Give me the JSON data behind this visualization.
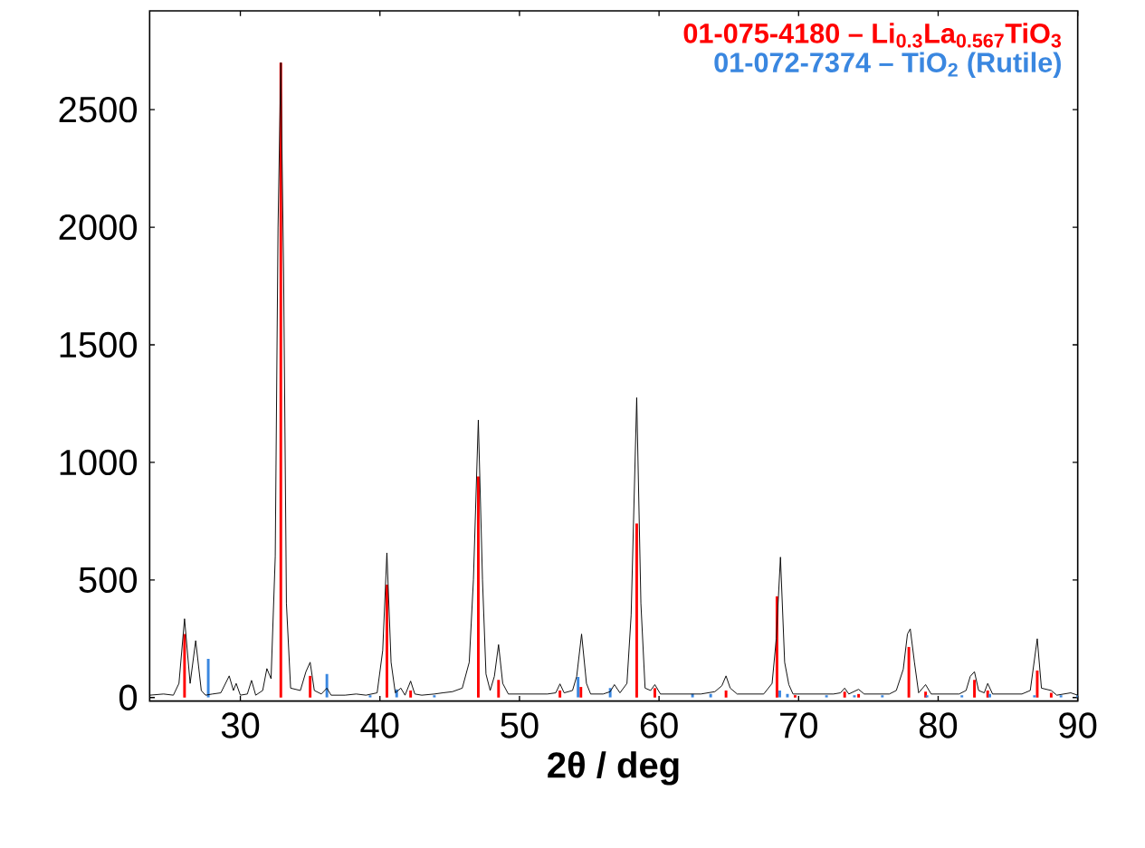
{
  "chart_data": {
    "type": "line",
    "xlabel": "2θ / deg",
    "xlim": [
      23.5,
      90
    ],
    "ylim": [
      -15,
      2920
    ],
    "xticks": [
      30,
      40,
      50,
      60,
      70,
      80,
      90
    ],
    "yticks": [
      0,
      500,
      1000,
      1500,
      2000,
      2500
    ],
    "grid": false,
    "legend": "top right",
    "series": [
      {
        "color": "#000000",
        "x": [
          23.5,
          24.5,
          25.2,
          25.6,
          26.0,
          26.4,
          26.8,
          27.2,
          27.5,
          28.0,
          28.6,
          29.2,
          29.5,
          29.7,
          30.0,
          30.5,
          30.8,
          31.1,
          31.6,
          31.9,
          32.2,
          32.5,
          32.7,
          32.9,
          33.1,
          33.3,
          33.6,
          34.3,
          34.7,
          35.0,
          35.3,
          35.8,
          36.2,
          36.5,
          37.5,
          38.3,
          39.0,
          39.8,
          40.2,
          40.5,
          40.8,
          41.1,
          41.5,
          41.8,
          42.2,
          42.5,
          43.0,
          43.9,
          44.5,
          45.2,
          45.9,
          46.4,
          46.7,
          47.05,
          47.35,
          47.6,
          47.9,
          48.2,
          48.5,
          48.8,
          49.2,
          50.0,
          51.0,
          52.0,
          52.6,
          52.9,
          53.2,
          53.8,
          54.1,
          54.45,
          54.8,
          55.1,
          56.0,
          56.5,
          56.8,
          57.2,
          57.7,
          58.0,
          58.4,
          58.7,
          59.0,
          59.4,
          59.7,
          60.1,
          61.0,
          62.0,
          63.0,
          64.0,
          64.5,
          64.8,
          65.1,
          65.6,
          66.5,
          67.5,
          68.1,
          68.4,
          68.7,
          69.0,
          69.3,
          69.6,
          70.5,
          71.5,
          72.5,
          73.0,
          73.3,
          73.6,
          74.3,
          74.7,
          75.5,
          76.5,
          77.0,
          77.5,
          77.8,
          78.0,
          78.3,
          78.6,
          79.1,
          79.5,
          80.5,
          81.5,
          82.0,
          82.3,
          82.6,
          82.9,
          83.3,
          83.55,
          83.9,
          85.0,
          86.0,
          86.6,
          87.1,
          87.4,
          88.1,
          88.5,
          89.5,
          90.0
        ],
        "values": [
          10,
          15,
          10,
          60,
          335,
          60,
          242,
          30,
          10,
          15,
          20,
          92,
          30,
          60,
          10,
          15,
          73,
          10,
          30,
          123,
          80,
          600,
          2000,
          2700,
          1800,
          400,
          40,
          30,
          110,
          150,
          30,
          15,
          40,
          10,
          10,
          15,
          10,
          20,
          200,
          615,
          150,
          20,
          40,
          10,
          70,
          15,
          10,
          15,
          20,
          25,
          40,
          150,
          500,
          1180,
          500,
          100,
          30,
          90,
          225,
          60,
          15,
          15,
          15,
          15,
          20,
          58,
          20,
          30,
          90,
          270,
          60,
          15,
          15,
          25,
          55,
          20,
          60,
          350,
          1275,
          400,
          40,
          30,
          55,
          15,
          15,
          15,
          15,
          25,
          50,
          92,
          40,
          15,
          15,
          15,
          60,
          250,
          597,
          150,
          55,
          15,
          15,
          15,
          15,
          20,
          40,
          15,
          35,
          15,
          15,
          15,
          30,
          120,
          270,
          292,
          150,
          20,
          55,
          15,
          15,
          15,
          30,
          90,
          110,
          30,
          20,
          60,
          15,
          15,
          15,
          30,
          250,
          40,
          30,
          10,
          20,
          10
        ]
      },
      {
        "type": "bar",
        "name": "01-075-4180 – Li$_{0.3}$La$_{0.567}$TiO$_{3}$",
        "color": "#ff0000",
        "x": [
          26.0,
          32.9,
          35.0,
          40.5,
          42.2,
          47.05,
          48.5,
          52.9,
          54.4,
          58.4,
          59.7,
          64.8,
          68.45,
          69.75,
          73.3,
          74.3,
          77.9,
          79.1,
          82.6,
          83.55,
          87.1,
          88.1
        ],
        "values": [
          270,
          2700,
          92,
          480,
          30,
          940,
          75,
          30,
          45,
          740,
          40,
          30,
          430,
          10,
          25,
          15,
          215,
          25,
          75,
          30,
          115,
          20
        ]
      },
      {
        "type": "bar",
        "name": "01-072-7374 – TiO$_{2}$ (Rutile)",
        "color": "#3a87e0",
        "x": [
          27.7,
          36.2,
          39.3,
          41.2,
          43.9,
          54.2,
          56.5,
          62.4,
          63.7,
          68.65,
          69.2,
          72.0,
          74.0,
          76.0,
          79.2,
          81.7,
          83.7,
          86.9,
          88.8,
          90.0
        ],
        "values": [
          165,
          100,
          10,
          35,
          10,
          88,
          40,
          15,
          15,
          30,
          15,
          10,
          10,
          10,
          10,
          10,
          15,
          10,
          10,
          10
        ]
      }
    ]
  }
}
